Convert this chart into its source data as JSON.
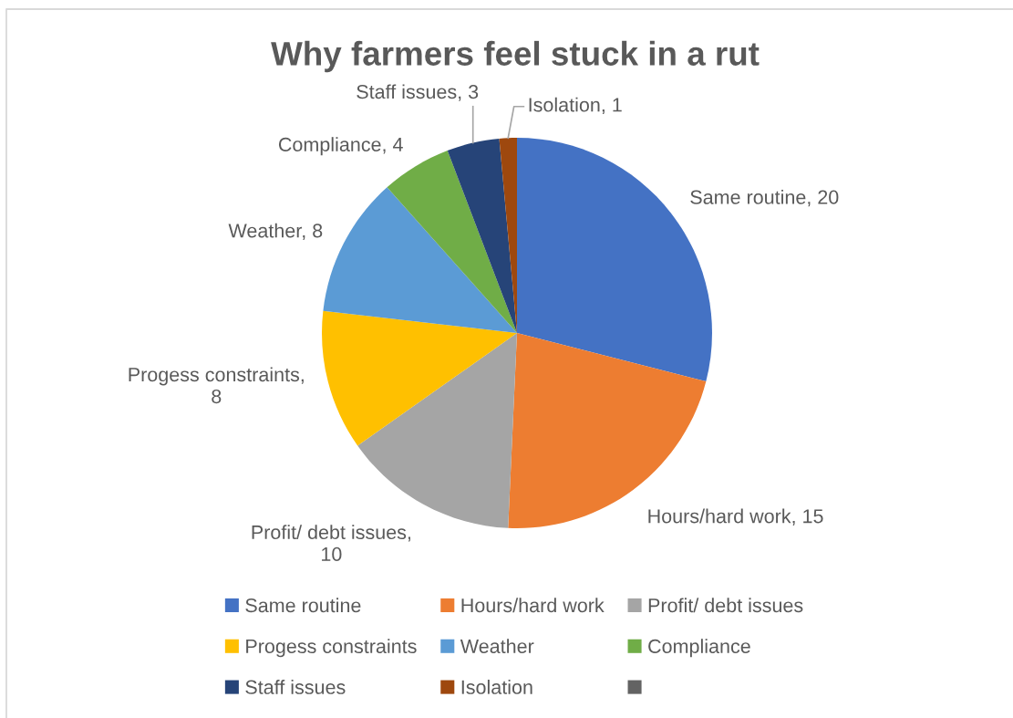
{
  "chart_data": {
    "type": "pie",
    "title": "Why farmers feel stuck in a rut",
    "categories": [
      "Same routine",
      "Hours/hard work",
      "Profit/ debt issues",
      "Progess constraints",
      "Weather",
      "Compliance",
      "Staff issues",
      "Isolation",
      null
    ],
    "values": [
      20,
      15,
      10,
      8,
      8,
      4,
      3,
      1,
      null
    ],
    "value_labels": [
      "Same routine, 20",
      "Hours/hard work, 15",
      "Profit/ debt issues, 10",
      "Progess constraints, 8",
      "Weather, 8",
      "Compliance, 4",
      "Staff issues, 3",
      "Isolation, 1",
      null
    ],
    "colors": [
      "#4472c4",
      "#ed7d31",
      "#a5a5a5",
      "#ffc000",
      "#5b9bd5",
      "#70ad47",
      "#264478",
      "#9e480e",
      "#636363"
    ],
    "legend": "bottom"
  }
}
